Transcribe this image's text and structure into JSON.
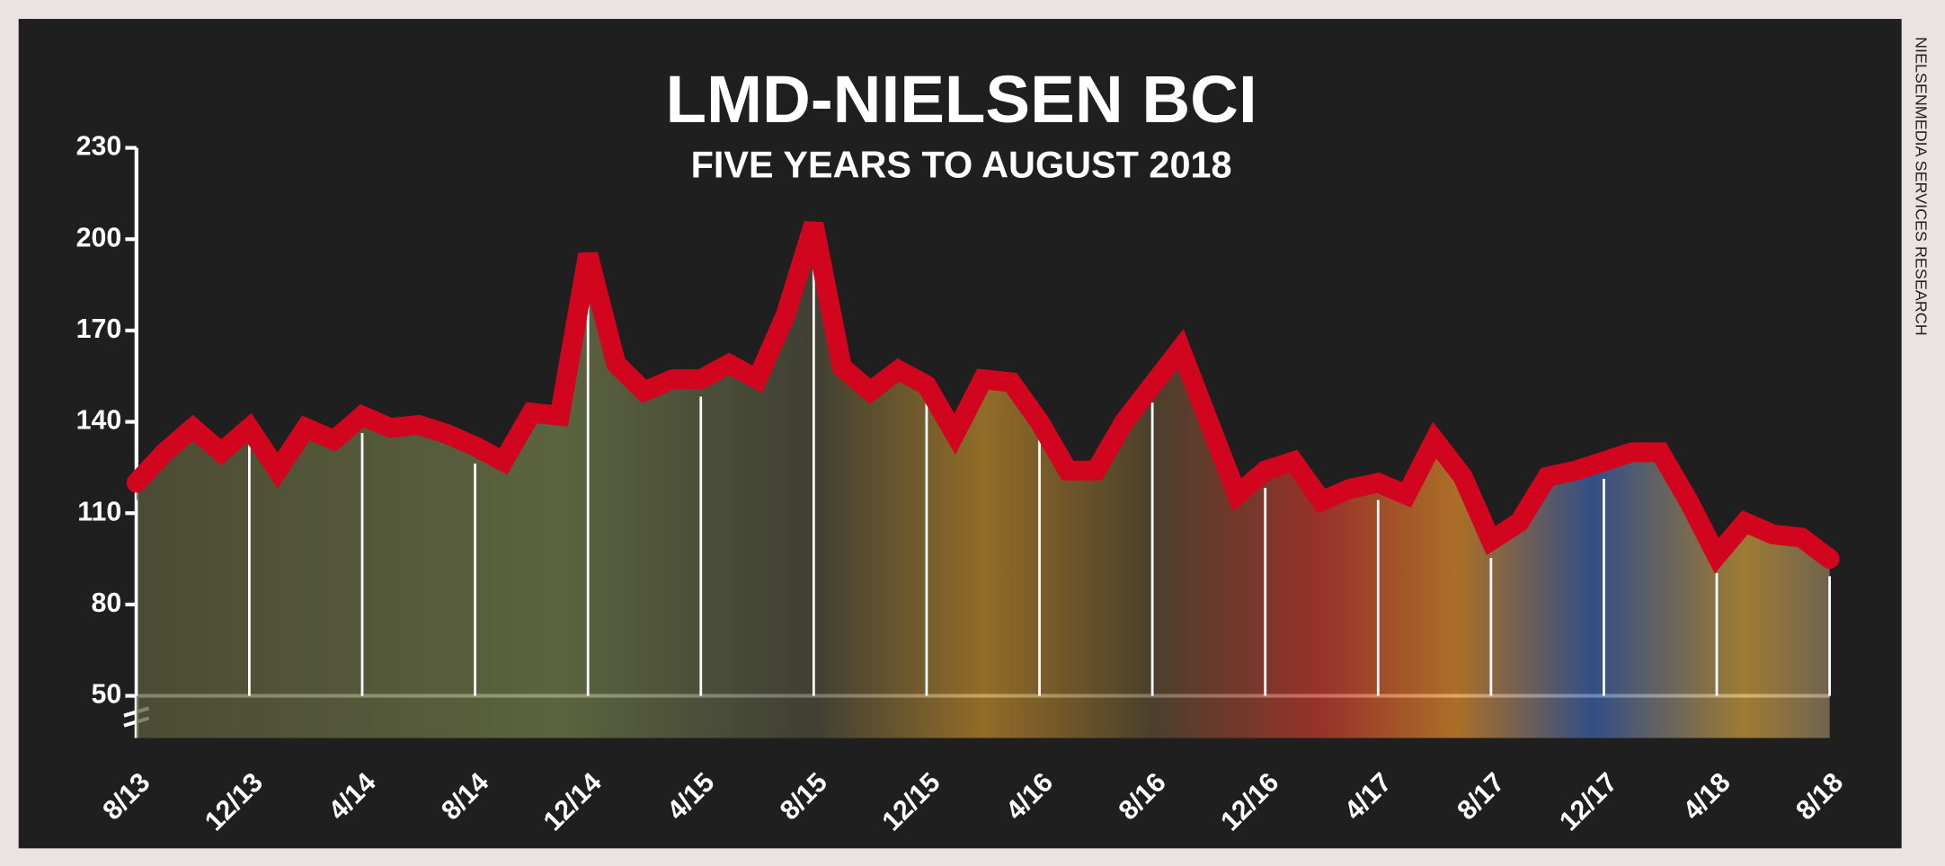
{
  "chart_data": {
    "type": "line",
    "title": "LMD-NIELSEN BCI",
    "subtitle": "FIVE YEARS TO AUGUST 2018",
    "source": "NIELSENMEDIA SERVICES RESEARCH",
    "categories": [
      "8/13",
      null,
      null,
      null,
      "12/13",
      null,
      null,
      null,
      "4/14",
      null,
      null,
      null,
      "8/14",
      null,
      null,
      null,
      "12/14",
      null,
      null,
      null,
      "4/15",
      null,
      null,
      null,
      "8/15",
      null,
      null,
      null,
      "12/15",
      null,
      null,
      null,
      "4/16",
      null,
      null,
      null,
      "8/16",
      null,
      null,
      null,
      "12/16",
      null,
      null,
      null,
      "4/17",
      null,
      null,
      null,
      "8/17",
      null,
      null,
      null,
      "12/17",
      null,
      null,
      null,
      "4/18",
      null,
      null,
      null,
      "8/18"
    ],
    "series": [
      {
        "name": "BCI",
        "color": "#d2051e",
        "values": [
          120,
          130,
          138,
          130,
          138,
          124,
          138,
          134,
          142,
          138,
          139,
          136,
          132,
          127,
          143,
          142,
          195,
          159,
          150,
          154,
          154,
          159,
          154,
          175,
          205,
          158,
          150,
          157,
          152,
          136,
          154,
          153,
          140,
          124,
          124,
          140,
          152,
          164,
          140,
          116,
          124,
          127,
          114,
          118,
          120,
          116,
          134,
          122,
          101,
          107,
          122,
          124,
          127,
          130,
          130,
          114,
          96,
          107,
          103,
          102,
          95
        ]
      }
    ],
    "ylim": [
      50,
      230
    ],
    "yticks": [
      50,
      80,
      110,
      140,
      170,
      200,
      230
    ]
  }
}
